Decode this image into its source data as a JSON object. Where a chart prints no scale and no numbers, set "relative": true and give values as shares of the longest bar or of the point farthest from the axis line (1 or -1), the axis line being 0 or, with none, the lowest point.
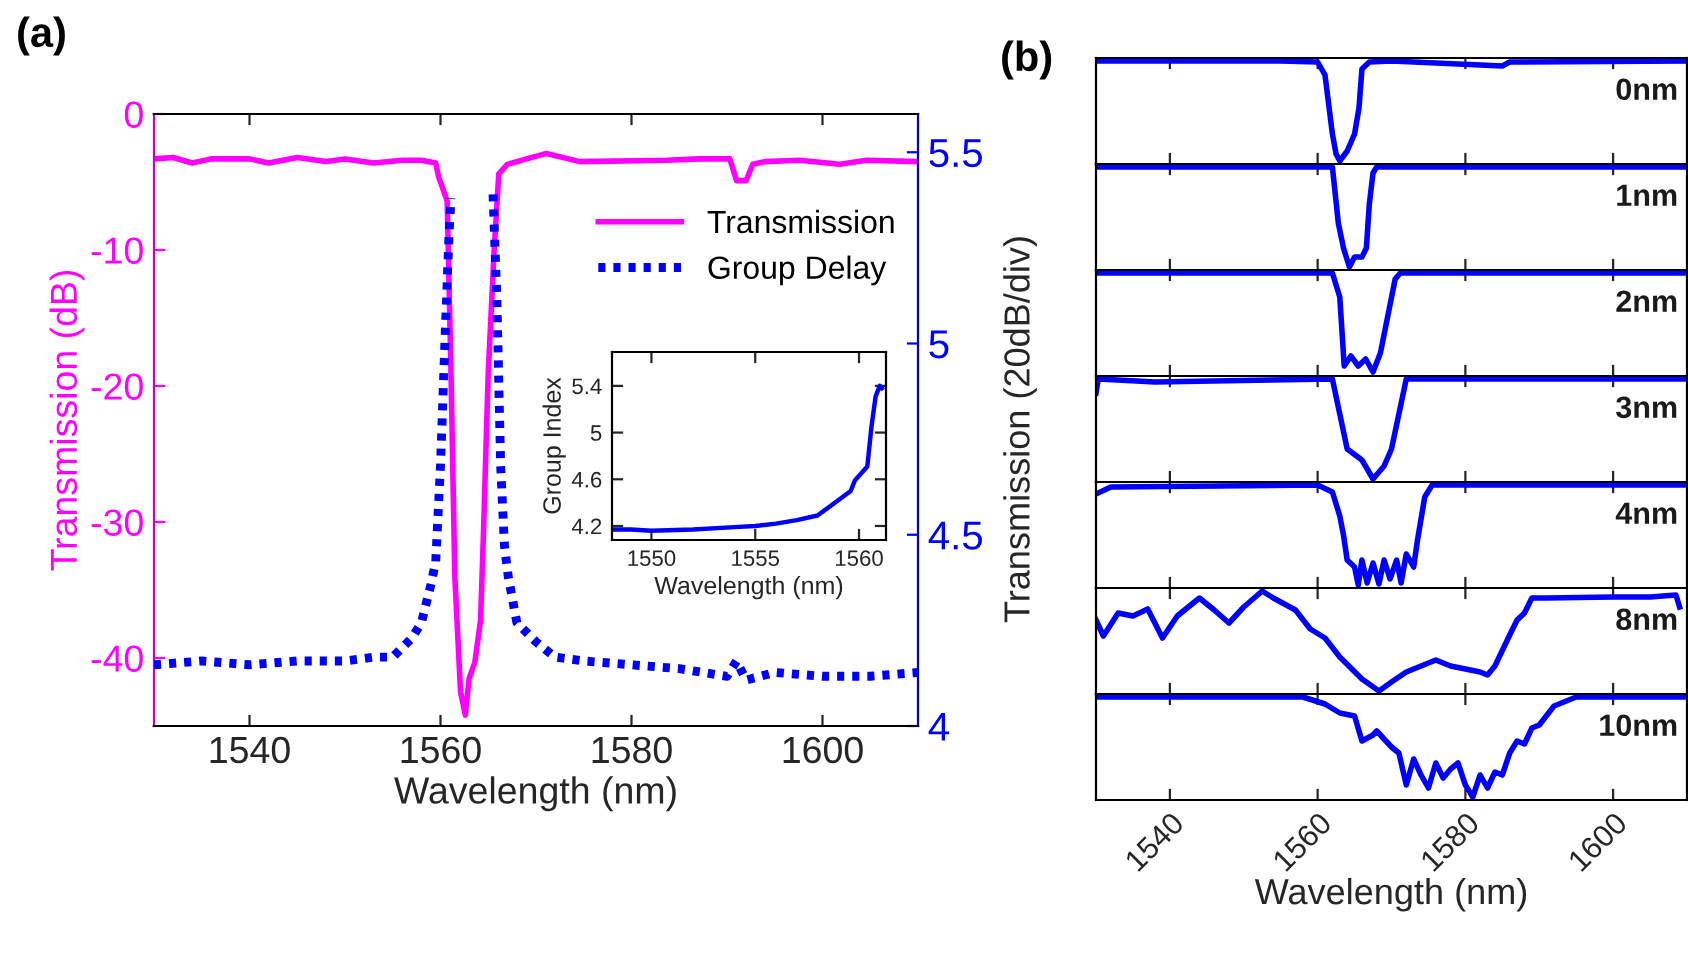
{
  "chart_data": [
    {
      "type": "line",
      "title": "(a)",
      "xlabel": "Wavelength (nm)",
      "ylabel": "Transmission (dB)",
      "xlim": [
        1530,
        1610
      ],
      "xticks": [
        1540,
        1560,
        1580,
        1600
      ],
      "ylim": [
        -45,
        0
      ],
      "yticks": [
        -40,
        -30,
        -20,
        -10,
        0
      ],
      "y2lim": [
        4,
        5.6
      ],
      "y2ticks": [
        4,
        4.5,
        5,
        5.5
      ],
      "legend": "top right",
      "marker": "none",
      "series": [
        {
          "name": "Transmission",
          "color": "#ff00ff",
          "line_style": "solid",
          "x": [
            1530,
            1532,
            1534,
            1536,
            1540,
            1542,
            1545,
            1548,
            1550,
            1553,
            1556,
            1558,
            1559.5,
            1559.8,
            1560.7,
            1561.1,
            1561.5,
            1562.1,
            1562.6,
            1563,
            1563.6,
            1564.2,
            1564.5,
            1565,
            1565.6,
            1566.1,
            1567,
            1569,
            1571.1,
            1574.6,
            1583.7,
            1587.2,
            1590.3,
            1591,
            1592,
            1592.7,
            1594,
            1597.6,
            1601.8,
            1604.6,
            1610
          ],
          "values": [
            -3.3,
            -3.2,
            -3.6,
            -3.3,
            -3.3,
            -3.6,
            -3.2,
            -3.5,
            -3.3,
            -3.6,
            -3.4,
            -3.4,
            -3.6,
            -4.6,
            -6.4,
            -19,
            -34,
            -42.5,
            -44.2,
            -41.5,
            -40.3,
            -37.2,
            -30.8,
            -19,
            -10.3,
            -4.4,
            -3.7,
            -3.3,
            -2.9,
            -3.5,
            -3.4,
            -3.3,
            -3.3,
            -4.9,
            -4.9,
            -3.7,
            -3.5,
            -3.4,
            -3.7,
            -3.4,
            -3.5
          ]
        },
        {
          "name": "Group Delay",
          "color": "#0000ff",
          "line_style": "dotted",
          "axis": "y2",
          "x": [
            1530,
            1535,
            1540,
            1545,
            1550,
            1553,
            1555,
            1557,
            1558,
            1559,
            1559.5,
            1560,
            1560.5,
            1560.9,
            1561.1,
            1563.3,
            1565.5,
            1565.9,
            1566.3,
            1566.7,
            1567.1,
            1568,
            1570,
            1572,
            1575,
            1580,
            1585,
            1590,
            1591,
            1592,
            1595,
            1600,
            1605,
            1610
          ],
          "values": [
            4.16,
            4.17,
            4.16,
            4.17,
            4.17,
            4.18,
            4.18,
            4.23,
            4.27,
            4.37,
            4.43,
            4.68,
            5.03,
            5.29,
            5.38,
            null,
            5.39,
            5.12,
            4.68,
            4.47,
            4.39,
            4.27,
            4.22,
            4.18,
            4.17,
            4.16,
            4.15,
            4.13,
            4.17,
            4.12,
            4.14,
            4.13,
            4.13,
            4.14
          ]
        }
      ]
    },
    {
      "type": "line",
      "xlabel": "Wavelength (nm)",
      "ylabel": "Group Index",
      "xlim": [
        1548.1,
        1561.3
      ],
      "xticks": [
        1550,
        1555,
        1560
      ],
      "ylim": [
        4.08,
        5.69
      ],
      "yticks": [
        4.2,
        4.6,
        5,
        5.4
      ],
      "marker": "none",
      "series": [
        {
          "color": "#0000ff",
          "line_style": "solid",
          "x": [
            1548.1,
            1549,
            1550,
            1552,
            1554,
            1555,
            1556,
            1557,
            1558,
            1559,
            1559.6,
            1559.8,
            1560.1,
            1560.4,
            1560.6,
            1560.8,
            1561.0,
            1561.1
          ],
          "values": [
            4.17,
            4.17,
            4.16,
            4.17,
            4.19,
            4.2,
            4.22,
            4.25,
            4.29,
            4.42,
            4.5,
            4.59,
            4.65,
            4.71,
            5.05,
            5.31,
            5.4,
            5.38
          ]
        }
      ]
    },
    {
      "type": "line",
      "relative": true,
      "title": "(b)",
      "annotations": [
        "0nm"
      ],
      "xlim": [
        1530,
        1610
      ],
      "xticks": [
        1540,
        1560,
        1580,
        1600
      ],
      "tick_labels": false,
      "marker": "none",
      "series": [
        {
          "color": "#0000ff",
          "line_style": "solid",
          "x": [
            1530,
            1555,
            1560,
            1561,
            1562,
            1562.5,
            1563,
            1564,
            1565,
            1565.6,
            1566,
            1567,
            1570,
            1585,
            1586,
            1610
          ],
          "values": [
            1,
            1,
            0.99,
            0.86,
            0.27,
            0.07,
            0,
            0.1,
            0.27,
            0.53,
            0.92,
            0.99,
            1,
            0.95,
            0.99,
            1
          ]
        }
      ]
    },
    {
      "type": "line",
      "relative": true,
      "annotations": [
        "1nm"
      ],
      "xlim": [
        1530,
        1610
      ],
      "xticks": [
        1540,
        1560,
        1580,
        1600
      ],
      "tick_labels": false,
      "marker": "none",
      "series": [
        {
          "color": "#0000ff",
          "line_style": "solid",
          "x": [
            1530,
            1562,
            1562.8,
            1563.5,
            1564.3,
            1565,
            1566,
            1566.6,
            1567,
            1567.5,
            1568,
            1610
          ],
          "values": [
            1,
            1,
            0.44,
            0.19,
            0,
            0.1,
            0.1,
            0.19,
            0.63,
            0.94,
            1,
            1
          ]
        }
      ]
    },
    {
      "type": "line",
      "relative": true,
      "annotations": [
        "2nm"
      ],
      "xlim": [
        1530,
        1610
      ],
      "xticks": [
        1540,
        1560,
        1580,
        1600
      ],
      "tick_labels": false,
      "marker": "none",
      "series": [
        {
          "color": "#0000ff",
          "line_style": "solid",
          "x": [
            1530,
            1562,
            1563,
            1563.6,
            1564.5,
            1565.5,
            1566.5,
            1567.5,
            1568.5,
            1569.5,
            1570.5,
            1571.2,
            1610
          ],
          "values": [
            1,
            1,
            0.76,
            0.07,
            0.17,
            0.07,
            0.14,
            0.01,
            0.2,
            0.57,
            0.94,
            1,
            1
          ]
        }
      ]
    },
    {
      "type": "line",
      "relative": true,
      "annotations": [
        "3nm"
      ],
      "xlim": [
        1530,
        1610
      ],
      "xticks": [
        1540,
        1560,
        1580,
        1600
      ],
      "tick_labels": false,
      "marker": "none",
      "series": [
        {
          "color": "#0000ff",
          "line_style": "solid",
          "x": [
            1530,
            1530.3,
            1538,
            1562,
            1563,
            1564,
            1566,
            1567.5,
            1569,
            1570,
            1571,
            1572,
            1610
          ],
          "values": [
            0.86,
            1,
            0.97,
            1,
            0.65,
            0.3,
            0.19,
            0,
            0.13,
            0.3,
            0.65,
            1,
            1
          ]
        }
      ]
    },
    {
      "type": "line",
      "relative": true,
      "annotations": [
        "4nm"
      ],
      "xlim": [
        1530,
        1610
      ],
      "xticks": [
        1540,
        1560,
        1580,
        1600
      ],
      "tick_labels": false,
      "marker": "none",
      "series": [
        {
          "color": "#0000ff",
          "line_style": "solid",
          "x": [
            1530,
            1532,
            1560,
            1562,
            1563,
            1563.5,
            1564,
            1565,
            1565.5,
            1566,
            1566.7,
            1567.5,
            1568.3,
            1569,
            1569.8,
            1570.7,
            1571.3,
            1572,
            1573,
            1573.5,
            1574.5,
            1575.5,
            1610
          ],
          "values": [
            0.91,
            0.98,
            1,
            0.93,
            0.69,
            0.5,
            0.25,
            0.18,
            0,
            0.25,
            0.02,
            0.22,
            0.01,
            0.25,
            0.06,
            0.25,
            0.02,
            0.31,
            0.18,
            0.44,
            0.88,
            1,
            1
          ]
        }
      ]
    },
    {
      "type": "line",
      "relative": true,
      "annotations": [
        "8nm"
      ],
      "xlim": [
        1530,
        1610
      ],
      "xticks": [
        1540,
        1560,
        1580,
        1600
      ],
      "tick_labels": false,
      "marker": "none",
      "series": [
        {
          "color": "#0000ff",
          "line_style": "solid",
          "x": [
            1530,
            1531,
            1533,
            1535,
            1537,
            1539,
            1541,
            1544,
            1546,
            1548,
            1550,
            1552.5,
            1554,
            1557,
            1559,
            1561,
            1563,
            1566,
            1568.3,
            1570,
            1572,
            1574,
            1576,
            1578,
            1580,
            1582,
            1583,
            1584,
            1586,
            1587,
            1588,
            1589,
            1591,
            1600,
            1605,
            1608.5,
            1609
          ],
          "values": [
            0.71,
            0.55,
            0.78,
            0.75,
            0.82,
            0.53,
            0.75,
            0.93,
            0.81,
            0.68,
            0.84,
            1,
            0.93,
            0.81,
            0.62,
            0.53,
            0.34,
            0.12,
            0,
            0.09,
            0.19,
            0.25,
            0.31,
            0.25,
            0.22,
            0.19,
            0.16,
            0.25,
            0.56,
            0.71,
            0.78,
            0.93,
            0.93,
            0.94,
            0.94,
            0.96,
            0.84
          ]
        }
      ]
    },
    {
      "type": "line",
      "relative": true,
      "annotations": [
        "10nm"
      ],
      "xlabel": "Wavelength (nm)",
      "ylabel": "Transmission (20dB/div)",
      "xlim": [
        1530,
        1610
      ],
      "xticks": [
        1540,
        1560,
        1580,
        1600
      ],
      "tick_labels": "x",
      "marker": "none",
      "series": [
        {
          "color": "#0000ff",
          "line_style": "solid",
          "x": [
            1530,
            1558,
            1561,
            1563,
            1565,
            1566,
            1567.5,
            1568,
            1570,
            1571,
            1572,
            1573,
            1574,
            1575,
            1576,
            1577,
            1578,
            1579,
            1580,
            1581,
            1582,
            1583,
            1584,
            1585,
            1586,
            1587,
            1588,
            1589,
            1590,
            1592,
            1595,
            1610
          ],
          "values": [
            1,
            1,
            0.93,
            0.84,
            0.81,
            0.56,
            0.62,
            0.66,
            0.5,
            0.44,
            0.12,
            0.38,
            0.22,
            0.09,
            0.34,
            0.19,
            0.28,
            0.34,
            0.12,
            0,
            0.22,
            0.09,
            0.25,
            0.22,
            0.44,
            0.56,
            0.53,
            0.69,
            0.72,
            0.91,
            1,
            1
          ]
        }
      ]
    }
  ]
}
